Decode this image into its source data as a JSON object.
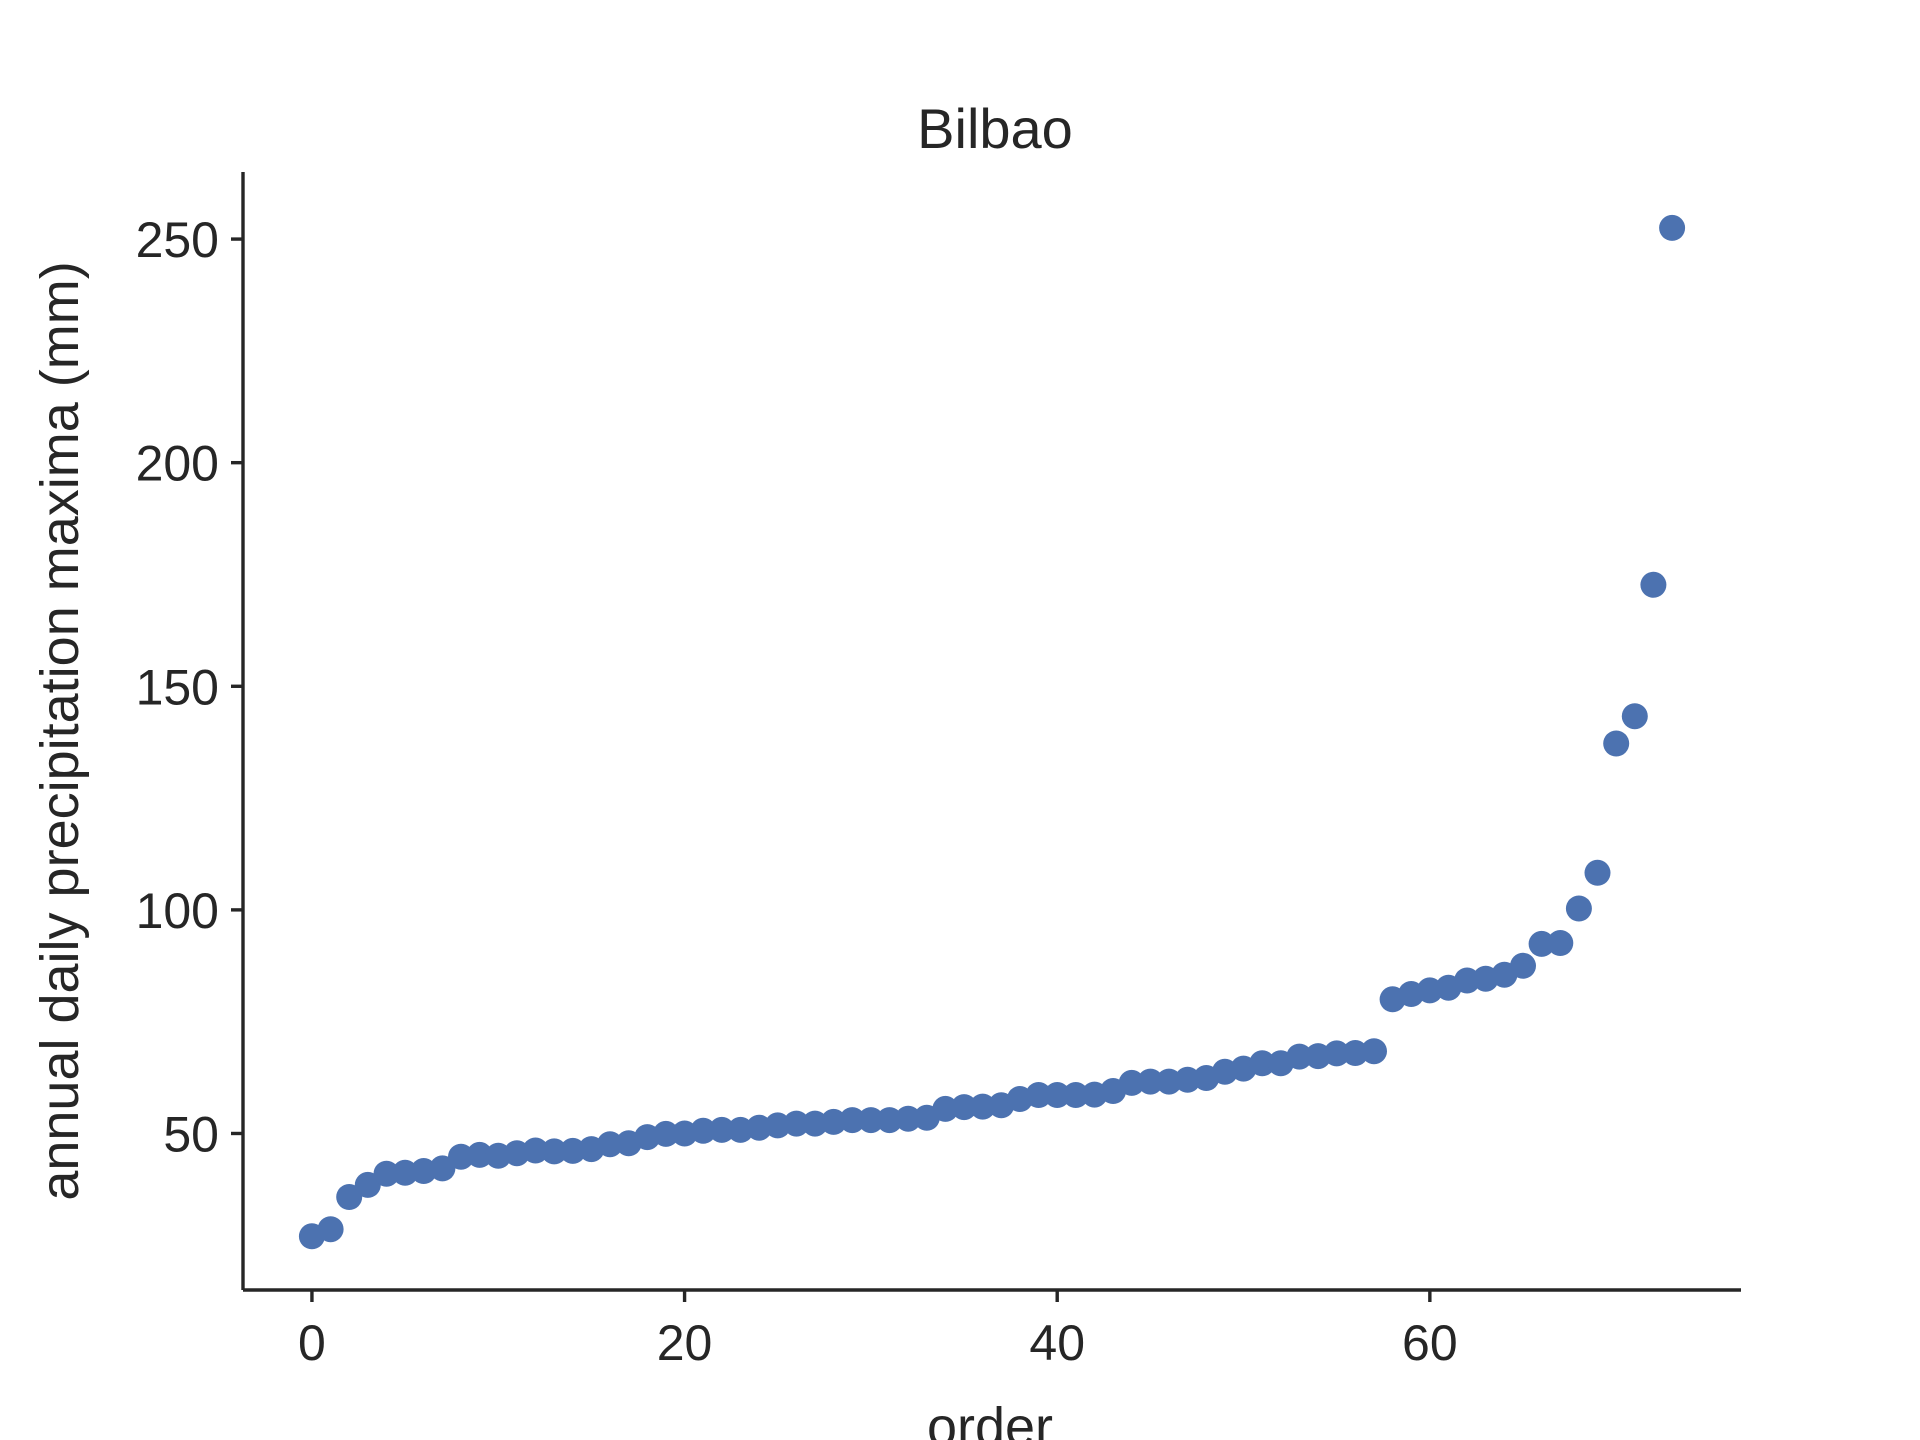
{
  "chart_data": {
    "type": "scatter",
    "title": "Bilbao",
    "xlabel": "order",
    "ylabel": "annual daily precipitation maxima (mm)",
    "xlim": [
      -3.7,
      76.7
    ],
    "ylim": [
      15,
      265
    ],
    "xticks": [
      0,
      20,
      40,
      60
    ],
    "yticks": [
      50,
      100,
      150,
      200,
      250
    ],
    "grid": false,
    "color": "#4c72b0",
    "series": [
      {
        "x": [
          0,
          1,
          2,
          3,
          4,
          5,
          6,
          7,
          8,
          9,
          10,
          11,
          12,
          13,
          14,
          15,
          16,
          17,
          18,
          19,
          20,
          21,
          22,
          23,
          24,
          25,
          26,
          27,
          28,
          29,
          30,
          31,
          32,
          33,
          34,
          35,
          36,
          37,
          38,
          39,
          40,
          41,
          42,
          43,
          44,
          45,
          46,
          47,
          48,
          49,
          50,
          51,
          52,
          53,
          54,
          55,
          56,
          57,
          58,
          59,
          60,
          61,
          62,
          63,
          64,
          65,
          66,
          67,
          68,
          69,
          70,
          71,
          72,
          73
        ],
        "y": [
          27.0,
          28.6,
          35.8,
          38.5,
          41.0,
          41.2,
          41.6,
          42.2,
          44.8,
          45.2,
          45.0,
          45.6,
          46.2,
          46.0,
          46.1,
          46.5,
          47.6,
          47.8,
          49.2,
          49.9,
          50.0,
          50.6,
          50.8,
          50.8,
          51.3,
          51.8,
          52.2,
          52.2,
          52.6,
          53.0,
          53.0,
          53.0,
          53.3,
          53.5,
          55.5,
          55.9,
          56.0,
          56.3,
          57.7,
          58.6,
          58.6,
          58.6,
          58.7,
          59.5,
          61.3,
          61.6,
          61.6,
          62.0,
          62.4,
          63.8,
          64.5,
          65.7,
          65.7,
          67.2,
          67.3,
          67.9,
          68.0,
          68.4,
          80.0,
          81.2,
          82.0,
          82.6,
          84.2,
          84.6,
          85.5,
          87.5,
          92.4,
          92.6,
          100.3,
          108.3,
          137.2,
          143.3,
          172.7,
          252.5
        ]
      }
    ]
  }
}
